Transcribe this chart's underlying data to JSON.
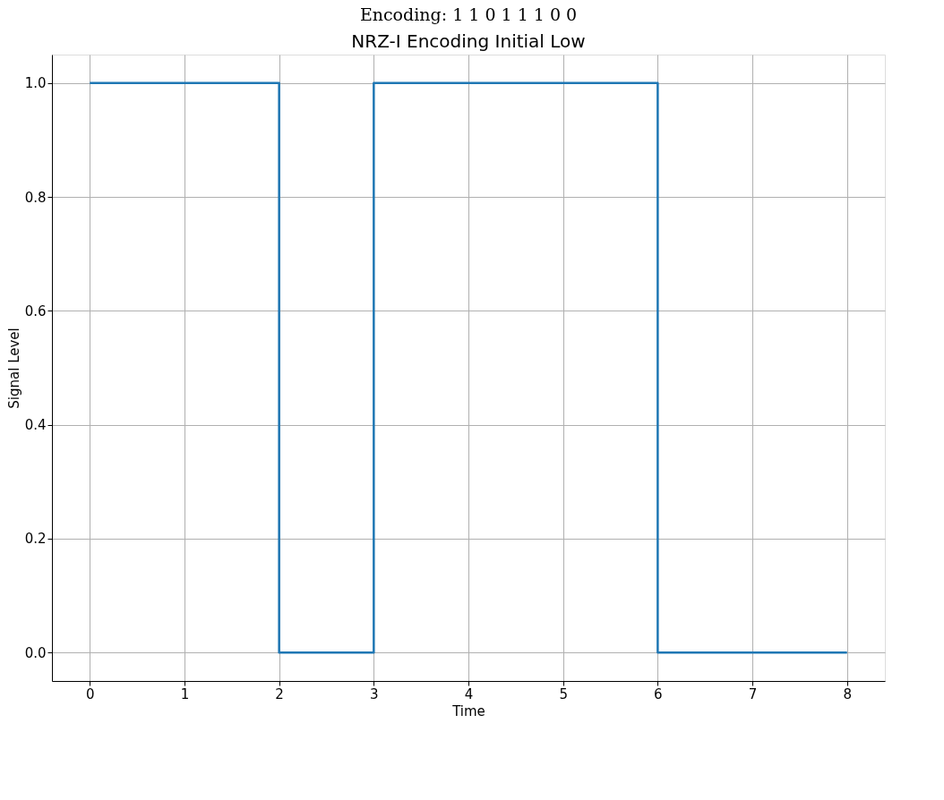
{
  "chart_data": {
    "type": "step",
    "title": "Encoding: 1 1 0 1 1 1 0 0",
    "subtitle": "NRZ-I Encoding Initial Low",
    "xlabel": "Time",
    "ylabel": "Signal Level",
    "x": [
      0,
      1,
      2,
      3,
      4,
      5,
      6,
      7,
      8
    ],
    "series": [
      {
        "color": "#1f77b4",
        "values": [
          1,
          1,
          0,
          1,
          1,
          1,
          0,
          0,
          0
        ]
      }
    ],
    "xlim": [
      -0.4,
      8.4
    ],
    "xticks": [
      0,
      1,
      2,
      3,
      4,
      5,
      6,
      7,
      8
    ],
    "ylim": [
      -0.05,
      1.05
    ],
    "yticks": [
      {
        "value": 0,
        "label": "0.0"
      },
      {
        "value": 0.2,
        "label": "0.2"
      },
      {
        "value": 0.4,
        "label": "0.4"
      },
      {
        "value": 0.6,
        "label": "0.6"
      },
      {
        "value": 0.8,
        "label": "0.8"
      },
      {
        "value": 1,
        "label": "1.0"
      }
    ],
    "grid": true,
    "marker": "none",
    "line_style": "solid"
  }
}
